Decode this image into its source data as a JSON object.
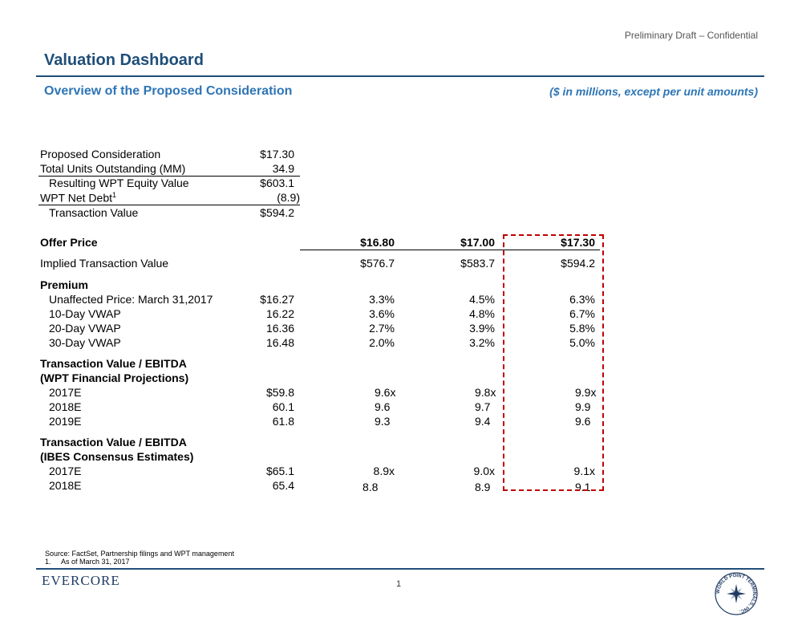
{
  "header": {
    "draft_label": "Preliminary Draft – Confidential",
    "title": "Valuation Dashboard",
    "subtitle": "Overview of the Proposed Consideration",
    "units_note": "($ in millions, except per unit amounts)"
  },
  "summary": {
    "rows": [
      {
        "label": "Proposed Consideration",
        "value": "$17.30"
      },
      {
        "label": "Total Units Outstanding (MM)",
        "value": "34.9"
      },
      {
        "label": "Resulting WPT Equity Value",
        "value": "$603.1"
      },
      {
        "label": "WPT Net Debt",
        "superscript": "1",
        "value": "(8.9)"
      },
      {
        "label": "Transaction Value",
        "value": "$594.2"
      }
    ]
  },
  "analysis": {
    "offer_price_label": "Offer Price",
    "offer_prices": [
      "$16.80",
      "$17.00",
      "$17.30"
    ],
    "implied_tv_label": "Implied Transaction Value",
    "implied_tv": [
      "$576.7",
      "$583.7",
      "$594.2"
    ],
    "premium_header": "Premium",
    "premium_rows": [
      {
        "label": "Unaffected Price: March 31,2017",
        "base": "$16.27",
        "values": [
          "3.3%",
          "4.5%",
          "6.3%"
        ]
      },
      {
        "label": "10-Day VWAP",
        "base": "16.22",
        "values": [
          "3.6%",
          "4.8%",
          "6.7%"
        ]
      },
      {
        "label": "20-Day VWAP",
        "base": "16.36",
        "values": [
          "2.7%",
          "3.9%",
          "5.8%"
        ]
      },
      {
        "label": "30-Day VWAP",
        "base": "16.48",
        "values": [
          "2.0%",
          "3.2%",
          "5.0%"
        ]
      }
    ],
    "wpt_header_1": "Transaction Value / EBITDA",
    "wpt_header_2": "(WPT Financial Projections)",
    "wpt_rows": [
      {
        "label": "2017E",
        "base": "$59.8",
        "values": [
          "9.6x",
          "9.8x",
          "9.9x"
        ]
      },
      {
        "label": "2018E",
        "base": "60.1",
        "values": [
          "9.6",
          "9.7",
          "9.9"
        ]
      },
      {
        "label": "2019E",
        "base": "61.8",
        "values": [
          "9.3",
          "9.4",
          "9.6"
        ]
      }
    ],
    "ibes_header_1": "Transaction Value / EBITDA",
    "ibes_header_2": "(IBES Consensus Estimates)",
    "ibes_rows": [
      {
        "label": "2017E",
        "base": "$65.1",
        "values": [
          "8.9x",
          "9.0x",
          "9.1x"
        ]
      },
      {
        "label": "2018E",
        "base": "65.4",
        "values": [
          "8.8",
          "8.9",
          "9.1"
        ]
      }
    ]
  },
  "footer": {
    "source": "Source: FactSet, Partnership filings and WPT management",
    "note_number": "1.",
    "note_text": "As of March 31, 2017",
    "logo_text": "EVERCORE",
    "page_number": "1",
    "seal_text": "WORLD POINT TERMINALS, INC."
  },
  "colors": {
    "brand_dark": "#1f4e79",
    "brand_light": "#2e75b6",
    "highlight_box": "#c00000"
  }
}
